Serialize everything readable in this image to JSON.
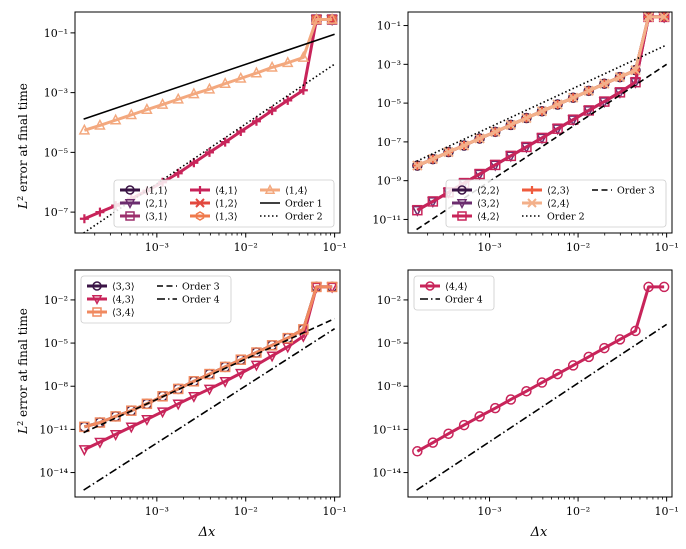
{
  "figure": {
    "ylabel_prefix": "L",
    "ylabel_sup": "2",
    "ylabel_rest": " error at final time",
    "xlabel": "Δx"
  },
  "chart_data": [
    {
      "type": "line",
      "panel": "top-left",
      "xscale": "log",
      "yscale": "log",
      "xlim": [
        0.00012,
        0.115
      ],
      "ylim": [
        2e-08,
        0.5
      ],
      "xticks": [
        0.001,
        0.01,
        0.1
      ],
      "xtick_labels": [
        "10^-3",
        "10^-2",
        "10^-1"
      ],
      "yticks": [
        1e-07,
        1e-05,
        0.001,
        0.1
      ],
      "ytick_labels": [
        "10^-7",
        "10^-5",
        "10^-3",
        "10^-1"
      ],
      "ylabel": "L^2 error at final time",
      "xlabel": "",
      "legend_location": "lower-right",
      "legend_columns": 3,
      "series": [
        {
          "name": "⟨1,1⟩",
          "color": "#3b1446",
          "marker": "circle",
          "x": [
            0.0625,
            0.09375
          ],
          "y": [
            0.28,
            0.28
          ]
        },
        {
          "name": "⟨2,1⟩",
          "color": "#6b2c6e",
          "marker": "triangle-down",
          "x": [
            0.0625,
            0.09375
          ],
          "y": [
            0.28,
            0.28
          ]
        },
        {
          "name": "⟨3,1⟩",
          "color": "#9c2f6c",
          "marker": "square",
          "x": [
            0.0625,
            0.09375
          ],
          "y": [
            0.28,
            0.28
          ]
        },
        {
          "name": "⟨4,1⟩",
          "color": "#c8245a",
          "marker": "plus",
          "x": [
            0.000153,
            0.000229,
            0.000344,
            0.000516,
            0.000773,
            0.00116,
            0.00174,
            0.00261,
            0.00391,
            0.00587,
            0.0088,
            0.0132,
            0.0198,
            0.0297,
            0.0445,
            0.0625,
            0.09375
          ],
          "y": [
            6e-08,
            1e-07,
            1.65e-07,
            2.8e-07,
            5.2e-07,
            1e-06,
            2e-06,
            4.5e-06,
            1e-05,
            2.2e-05,
            5e-05,
            0.00011,
            0.00025,
            0.00055,
            0.0012,
            0.28,
            0.28
          ]
        },
        {
          "name": "⟨1,2⟩",
          "color": "#e2483e",
          "marker": "x",
          "x": [
            0.0625,
            0.09375
          ],
          "y": [
            0.28,
            0.28
          ]
        },
        {
          "name": "⟨1,3⟩",
          "color": "#ef7a4c",
          "marker": "hexagon",
          "x": [
            0.0625,
            0.09375
          ],
          "y": [
            0.28,
            0.28
          ]
        },
        {
          "name": "⟨1,4⟩",
          "color": "#f3a87e",
          "marker": "triangle-up",
          "x": [
            0.000153,
            0.000229,
            0.000344,
            0.000516,
            0.000773,
            0.00116,
            0.00174,
            0.00261,
            0.00391,
            0.00587,
            0.0088,
            0.0132,
            0.0198,
            0.0297,
            0.0445,
            0.0625,
            0.09375
          ],
          "y": [
            5.5e-05,
            8e-05,
            0.00012,
            0.00018,
            0.00027,
            0.0004,
            0.0006,
            0.0009,
            0.0013,
            0.002,
            0.003,
            0.0045,
            0.007,
            0.01,
            0.015,
            0.28,
            0.28
          ]
        },
        {
          "name": "Order 1",
          "color": "#000000",
          "dash": "",
          "x": [
            0.00015,
            0.1
          ],
          "y": [
            0.00013,
            0.09
          ]
        },
        {
          "name": "Order 2",
          "color": "#000000",
          "dash": "1.5 2.5",
          "x": [
            0.00015,
            0.1
          ],
          "y": [
            2e-08,
            0.009
          ]
        }
      ]
    },
    {
      "type": "line",
      "panel": "top-right",
      "xscale": "log",
      "yscale": "log",
      "xlim": [
        0.00012,
        0.115
      ],
      "ylim": [
        2e-12,
        0.5
      ],
      "xticks": [
        0.001,
        0.01,
        0.1
      ],
      "xtick_labels": [
        "10^-3",
        "10^-2",
        "10^-1"
      ],
      "yticks": [
        1e-11,
        1e-09,
        1e-07,
        1e-05,
        0.001,
        0.1
      ],
      "ytick_labels": [
        "10^-11",
        "10^-9",
        "10^-7",
        "10^-5",
        "10^-3",
        "10^-1"
      ],
      "xlabel": "",
      "ylabel": "",
      "legend_location": "lower-right",
      "legend_columns": 3,
      "series": [
        {
          "name": "⟨2,2⟩",
          "color": "#3b1446",
          "marker": "circle",
          "x": [
            0.000153,
            0.000229,
            0.000344,
            0.000516,
            0.000773,
            0.00116,
            0.00174,
            0.00261,
            0.00391,
            0.00587,
            0.0088,
            0.0132,
            0.0198,
            0.0297,
            0.0445,
            0.0625,
            0.09375
          ],
          "y": [
            6e-09,
            1.3e-08,
            3e-08,
            6.5e-08,
            1.5e-07,
            3.3e-07,
            7.5e-07,
            1.7e-06,
            3.8e-06,
            8.5e-06,
            1.9e-05,
            4.3e-05,
            0.0001,
            0.00022,
            0.0005,
            0.28,
            0.28
          ]
        },
        {
          "name": "⟨3,2⟩",
          "color": "#6b2c6e",
          "marker": "triangle-down",
          "x": [
            0.000153,
            0.000229,
            0.000344,
            0.000516,
            0.000773,
            0.00116,
            0.00174,
            0.00261,
            0.00391,
            0.00587,
            0.0088,
            0.0132,
            0.0198,
            0.0297,
            0.0445,
            0.0625,
            0.09375
          ],
          "y": [
            3e-11,
            8.5e-11,
            2.5e-10,
            7.5e-10,
            2.2e-09,
            6.5e-09,
            1.9e-08,
            5.5e-08,
            1.6e-07,
            4.8e-07,
            1.4e-06,
            4.2e-06,
            1.2e-05,
            3.6e-05,
            0.00012,
            0.28,
            0.28
          ]
        },
        {
          "name": "⟨4,2⟩",
          "color": "#c8245a",
          "marker": "square",
          "x": [
            0.000153,
            0.000229,
            0.000344,
            0.000516,
            0.000773,
            0.00116,
            0.00174,
            0.00261,
            0.00391,
            0.00587,
            0.0088,
            0.0132,
            0.0198,
            0.0297,
            0.0445,
            0.0625,
            0.09375
          ],
          "y": [
            3e-11,
            8.5e-11,
            2.5e-10,
            7.5e-10,
            2.2e-09,
            6.5e-09,
            1.9e-08,
            5.5e-08,
            1.6e-07,
            4.8e-07,
            1.4e-06,
            4.2e-06,
            1.2e-05,
            3.6e-05,
            0.00012,
            0.28,
            0.28
          ]
        },
        {
          "name": "⟨2,3⟩",
          "color": "#ef5b3d",
          "marker": "plus",
          "x": [
            0.000153,
            0.000229,
            0.000344,
            0.000516,
            0.000773,
            0.00116,
            0.00174,
            0.00261,
            0.00391,
            0.00587,
            0.0088,
            0.0132,
            0.0198,
            0.0297,
            0.0445,
            0.0625,
            0.09375
          ],
          "y": [
            6e-09,
            1.3e-08,
            3e-08,
            6.5e-08,
            1.5e-07,
            3.3e-07,
            7.5e-07,
            1.7e-06,
            3.8e-06,
            8.5e-06,
            1.9e-05,
            4.3e-05,
            0.0001,
            0.00022,
            0.0005,
            0.28,
            0.28
          ]
        },
        {
          "name": "⟨2,4⟩",
          "color": "#f3b08a",
          "marker": "x",
          "x": [
            0.000153,
            0.000229,
            0.000344,
            0.000516,
            0.000773,
            0.00116,
            0.00174,
            0.00261,
            0.00391,
            0.00587,
            0.0088,
            0.0132,
            0.0198,
            0.0297,
            0.0445,
            0.0625,
            0.09375
          ],
          "y": [
            6e-09,
            1.3e-08,
            3e-08,
            6.5e-08,
            1.5e-07,
            3.3e-07,
            7.5e-07,
            1.7e-06,
            3.8e-06,
            8.5e-06,
            1.9e-05,
            4.3e-05,
            0.0001,
            0.00022,
            0.0005,
            0.28,
            0.28
          ]
        },
        {
          "name": "Order 2",
          "color": "#000000",
          "dash": "1.5 2.5",
          "x": [
            0.00015,
            0.1
          ],
          "y": [
            1e-08,
            0.01
          ]
        },
        {
          "name": "Order 3",
          "color": "#000000",
          "dash": "6 3.5",
          "x": [
            0.00015,
            0.1
          ],
          "y": [
            3e-12,
            0.001
          ]
        }
      ]
    },
    {
      "type": "line",
      "panel": "bottom-left",
      "xscale": "log",
      "yscale": "log",
      "xlim": [
        0.00012,
        0.115
      ],
      "ylim": [
        2e-16,
        1.2
      ],
      "xticks": [
        0.001,
        0.01,
        0.1
      ],
      "xtick_labels": [
        "10^-3",
        "10^-2",
        "10^-1"
      ],
      "yticks": [
        1e-14,
        1e-11,
        1e-08,
        1e-05,
        0.01
      ],
      "ytick_labels": [
        "10^-14",
        "10^-11",
        "10^-8",
        "10^-5",
        "10^-2"
      ],
      "ylabel": "L^2 error at final time",
      "xlabel": "Δx",
      "legend_location": "upper-left",
      "legend_columns": 2,
      "series": [
        {
          "name": "⟨3,3⟩",
          "color": "#3b1446",
          "marker": "circle",
          "x": [
            0.000153,
            0.000229,
            0.000344,
            0.000516,
            0.000773,
            0.00116,
            0.00174,
            0.00261,
            0.00391,
            0.00587,
            0.0088,
            0.0132,
            0.0198,
            0.0297,
            0.0445,
            0.0625,
            0.09375
          ],
          "y": [
            1.5e-11,
            3e-11,
            8e-11,
            2e-10,
            6e-10,
            2e-09,
            6.5e-09,
            2.2e-08,
            7e-08,
            2.2e-07,
            7e-07,
            2.2e-06,
            7e-06,
            2.2e-05,
            9e-05,
            0.08,
            0.08
          ]
        },
        {
          "name": "⟨4,3⟩",
          "color": "#c8245a",
          "marker": "triangle-down",
          "x": [
            0.000153,
            0.000229,
            0.000344,
            0.000516,
            0.000773,
            0.00116,
            0.00174,
            0.00261,
            0.00391,
            0.00587,
            0.0088,
            0.0132,
            0.0198,
            0.0297,
            0.0445,
            0.0625,
            0.09375
          ],
          "y": [
            4e-13,
            1.3e-12,
            4.5e-12,
            1.5e-11,
            5e-11,
            1.7e-10,
            6e-10,
            2e-09,
            6.5e-09,
            2.2e-08,
            8e-08,
            3e-07,
            1.3e-06,
            5.5e-06,
            3e-05,
            0.08,
            0.08
          ]
        },
        {
          "name": "⟨3,4⟩",
          "color": "#f08a60",
          "marker": "square",
          "x": [
            0.000153,
            0.000229,
            0.000344,
            0.000516,
            0.000773,
            0.00116,
            0.00174,
            0.00261,
            0.00391,
            0.00587,
            0.0088,
            0.0132,
            0.0198,
            0.0297,
            0.0445,
            0.0625,
            0.09375
          ],
          "y": [
            1.5e-11,
            3e-11,
            8e-11,
            2e-10,
            6e-10,
            2e-09,
            6.5e-09,
            2.2e-08,
            7e-08,
            2.2e-07,
            7e-07,
            2.2e-06,
            7e-06,
            2.2e-05,
            9e-05,
            0.08,
            0.08
          ]
        },
        {
          "name": "Order 3",
          "color": "#000000",
          "dash": "6 3.5",
          "x": [
            0.00015,
            0.1
          ],
          "y": [
            6e-12,
            0.0005
          ]
        },
        {
          "name": "Order 4",
          "color": "#000000",
          "dash": "8 3 1.5 3",
          "x": [
            0.00015,
            0.1
          ],
          "y": [
            6e-16,
            0.0001
          ]
        }
      ]
    },
    {
      "type": "line",
      "panel": "bottom-right",
      "xscale": "log",
      "yscale": "log",
      "xlim": [
        0.00012,
        0.115
      ],
      "ylim": [
        2e-16,
        1.2
      ],
      "xticks": [
        0.001,
        0.01,
        0.1
      ],
      "xtick_labels": [
        "10^-3",
        "10^-2",
        "10^-1"
      ],
      "yticks": [
        1e-14,
        1e-11,
        1e-08,
        1e-05,
        0.01
      ],
      "ytick_labels": [
        "10^-14",
        "10^-11",
        "10^-8",
        "10^-5",
        "10^-2"
      ],
      "xlabel": "Δx",
      "ylabel": "",
      "legend_location": "upper-left",
      "legend_columns": 1,
      "series": [
        {
          "name": "⟨4,4⟩",
          "color": "#c8245a",
          "marker": "circle",
          "x": [
            0.000153,
            0.000229,
            0.000344,
            0.000516,
            0.000773,
            0.00116,
            0.00174,
            0.00261,
            0.00391,
            0.00587,
            0.0088,
            0.0132,
            0.0198,
            0.0297,
            0.0445,
            0.0625,
            0.09375
          ],
          "y": [
            3e-13,
            1.2e-12,
            5e-12,
            2e-11,
            8e-11,
            3e-10,
            1.2e-09,
            4.5e-09,
            1.8e-08,
            7e-08,
            2.8e-07,
            1.1e-06,
            4.5e-06,
            1.8e-05,
            7e-05,
            0.08,
            0.08
          ]
        },
        {
          "name": "Order 4",
          "color": "#000000",
          "dash": "8 3 1.5 3",
          "x": [
            0.00015,
            0.1
          ],
          "y": [
            6e-16,
            0.0002
          ]
        }
      ]
    }
  ]
}
